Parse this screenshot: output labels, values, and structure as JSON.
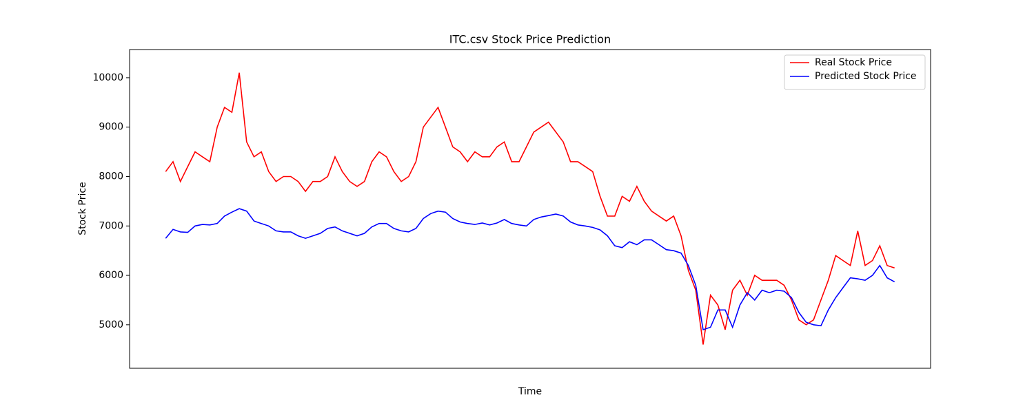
{
  "chart_data": {
    "type": "line",
    "title": "ITC.csv Stock Price Prediction",
    "x_label": "Time",
    "y_label": "Stock Price",
    "ylim": [
      4120,
      10570
    ],
    "yticks": [
      5000,
      6000,
      7000,
      8000,
      9000,
      10000
    ],
    "legend": "upper right",
    "series": [
      {
        "name": "Real Stock Price",
        "color": "#ff0000",
        "values": [
          8100,
          8300,
          7900,
          8200,
          8500,
          8400,
          8300,
          9000,
          9400,
          9300,
          10100,
          8700,
          8400,
          8500,
          8100,
          7900,
          8000,
          8000,
          7900,
          7700,
          7900,
          7900,
          8000,
          8400,
          8100,
          7900,
          7800,
          7900,
          8300,
          8500,
          8400,
          8100,
          7900,
          8000,
          8300,
          9000,
          9200,
          9400,
          9000,
          8600,
          8500,
          8300,
          8500,
          8400,
          8400,
          8600,
          8700,
          8300,
          8300,
          8600,
          8900,
          9000,
          9100,
          8900,
          8700,
          8300,
          8300,
          8200,
          8100,
          7600,
          7200,
          7200,
          7600,
          7500,
          7800,
          7500,
          7300,
          7200,
          7100,
          7200,
          6800,
          6100,
          5700,
          4600,
          5600,
          5400,
          4900,
          5700,
          5900,
          5600,
          6000,
          5900,
          5900,
          5900,
          5800,
          5500,
          5100,
          5000,
          5100,
          5500,
          5900,
          6400,
          6300,
          6200,
          6900,
          6200,
          6300,
          6600,
          6200,
          6150
        ]
      },
      {
        "name": "Predicted Stock Price",
        "color": "#0000ff",
        "values": [
          6750,
          6930,
          6880,
          6870,
          7000,
          7030,
          7020,
          7050,
          7200,
          7280,
          7350,
          7300,
          7100,
          7050,
          7000,
          6900,
          6880,
          6880,
          6800,
          6750,
          6800,
          6850,
          6950,
          6980,
          6900,
          6850,
          6800,
          6850,
          6980,
          7050,
          7050,
          6950,
          6900,
          6880,
          6950,
          7150,
          7250,
          7300,
          7280,
          7150,
          7080,
          7050,
          7030,
          7060,
          7020,
          7060,
          7130,
          7050,
          7020,
          7000,
          7130,
          7180,
          7210,
          7240,
          7200,
          7080,
          7020,
          7000,
          6970,
          6920,
          6800,
          6600,
          6560,
          6680,
          6620,
          6720,
          6720,
          6620,
          6520,
          6500,
          6450,
          6200,
          5800,
          4900,
          4950,
          5300,
          5300,
          4950,
          5400,
          5650,
          5500,
          5700,
          5650,
          5700,
          5680,
          5550,
          5250,
          5050,
          5000,
          4980,
          5300,
          5550,
          5750,
          5950,
          5930,
          5900,
          6000,
          6200,
          5950,
          5870
        ]
      }
    ]
  }
}
